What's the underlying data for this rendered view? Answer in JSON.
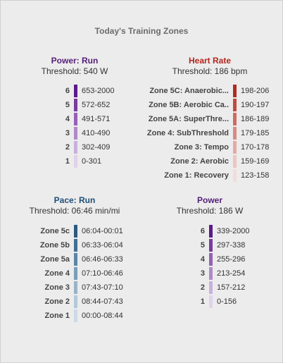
{
  "title": "Today's Training Zones",
  "panels": [
    {
      "title": "Power: Run",
      "title_color": "#55207a",
      "threshold": "Threshold: 540 W",
      "zones": [
        {
          "label": "6",
          "range": "653-2000",
          "color": "#5b1a8a"
        },
        {
          "label": "5",
          "range": "572-652",
          "color": "#7a3aa0"
        },
        {
          "label": "4",
          "range": "491-571",
          "color": "#9560b5"
        },
        {
          "label": "3",
          "range": "410-490",
          "color": "#b08ac8"
        },
        {
          "label": "2",
          "range": "302-409",
          "color": "#c9b0dc"
        },
        {
          "label": "1",
          "range": "0-301",
          "color": "#e0d2ec"
        }
      ]
    },
    {
      "title": "Heart Rate",
      "title_color": "#b3261e",
      "threshold": "Threshold: 186 bpm",
      "zones": [
        {
          "label": "Zone 5C: Anaerobic...",
          "range": "198-206",
          "color": "#b22b22"
        },
        {
          "label": "Zone 5B: Aerobic Ca..",
          "range": "190-197",
          "color": "#c24a40"
        },
        {
          "label": "Zone 5A: SuperThre...",
          "range": "186-189",
          "color": "#cf6b62"
        },
        {
          "label": "Zone 4: SubThreshold",
          "range": "179-185",
          "color": "#d98b85"
        },
        {
          "label": "Zone 3: Tempo",
          "range": "170-178",
          "color": "#e3aaa5"
        },
        {
          "label": "Zone 2: Aerobic",
          "range": "159-169",
          "color": "#ecc5c2"
        },
        {
          "label": "Zone 1: Recovery",
          "range": "123-158",
          "color": "#f3dcdb"
        }
      ]
    },
    {
      "title": "Pace: Run",
      "title_color": "#1f4e79",
      "threshold": "Threshold: 06:46 min/mi",
      "zones": [
        {
          "label": "Zone 5c",
          "range": "06:04-00:01",
          "color": "#2a5a80"
        },
        {
          "label": "Zone 5b",
          "range": "06:33-06:04",
          "color": "#416f93"
        },
        {
          "label": "Zone 5a",
          "range": "06:46-06:33",
          "color": "#5b85a5"
        },
        {
          "label": "Zone 4",
          "range": "07:10-06:46",
          "color": "#7a9db8"
        },
        {
          "label": "Zone 3",
          "range": "07:43-07:10",
          "color": "#98b4ca"
        },
        {
          "label": "Zone 2",
          "range": "08:44-07:43",
          "color": "#b4c8d8"
        },
        {
          "label": "Zone 1",
          "range": "00:00-08:44",
          "color": "#ccdae5"
        }
      ]
    },
    {
      "title": "Power",
      "title_color": "#55207a",
      "threshold": "Threshold: 186 W",
      "zones": [
        {
          "label": "6",
          "range": "339-2000",
          "color": "#5b1a8a"
        },
        {
          "label": "5",
          "range": "297-338",
          "color": "#7a3aa0"
        },
        {
          "label": "4",
          "range": "255-296",
          "color": "#9560b5"
        },
        {
          "label": "3",
          "range": "213-254",
          "color": "#b08ac8"
        },
        {
          "label": "2",
          "range": "157-212",
          "color": "#c9b0dc"
        },
        {
          "label": "1",
          "range": "0-156",
          "color": "#e0d2ec"
        }
      ]
    }
  ]
}
